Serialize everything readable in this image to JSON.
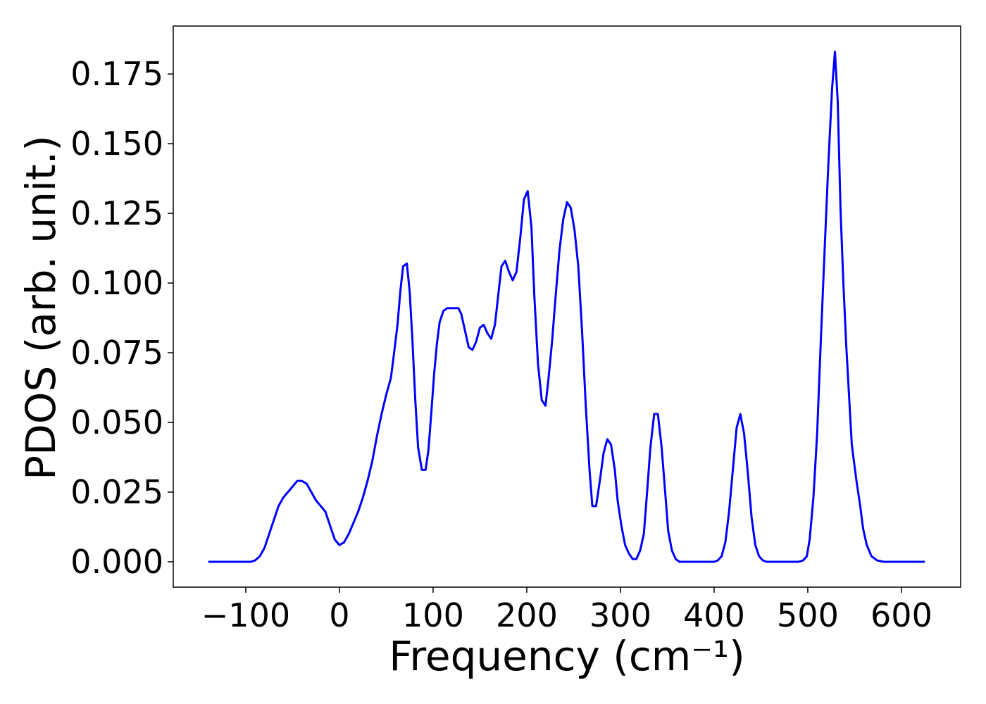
{
  "chart_data": {
    "type": "line",
    "xlabel": "Frequency (cm⁻¹)",
    "ylabel": "PDOS (arb. unit.)",
    "color": "#0000ff",
    "xlim": [
      -177.4,
      663.2
    ],
    "ylim": [
      -0.00909,
      0.1922
    ],
    "xticks": [
      {
        "value": -100,
        "label": "−100"
      },
      0,
      100,
      200,
      300,
      400,
      500,
      600
    ],
    "yticks": [
      {
        "value": 0,
        "label": "0.000"
      },
      {
        "value": 0.025,
        "label": "0.025"
      },
      {
        "value": 0.05,
        "label": "0.050"
      },
      {
        "value": 0.075,
        "label": "0.075"
      },
      {
        "value": 0.1,
        "label": "0.100"
      },
      {
        "value": 0.125,
        "label": "0.125"
      },
      {
        "value": 0.15,
        "label": "0.150"
      },
      {
        "value": 0.175,
        "label": "0.175"
      }
    ],
    "x": [
      -140,
      -95,
      -90,
      -85,
      -80,
      -75,
      -70,
      -65,
      -60,
      -55,
      -50,
      -45,
      -40,
      -35,
      -30,
      -25,
      -20,
      -15,
      -10,
      -5,
      0,
      5,
      10,
      15,
      20,
      25,
      30,
      35,
      40,
      45,
      50,
      55,
      58,
      62,
      65,
      68,
      72,
      75,
      78,
      81,
      84,
      88,
      92,
      95,
      98,
      101,
      104,
      107,
      111,
      115,
      120,
      127,
      130,
      134,
      138,
      142,
      146,
      150,
      154,
      158,
      162,
      166,
      170,
      173,
      177,
      181,
      185,
      189,
      193,
      197,
      201,
      205,
      208,
      212,
      216,
      220,
      223,
      227,
      231,
      235,
      239,
      243,
      247,
      251,
      255,
      259,
      263,
      267,
      270,
      274,
      278,
      282,
      286,
      290,
      294,
      297,
      301,
      305,
      309,
      313,
      317,
      321,
      325,
      328,
      332,
      336,
      340,
      344,
      348,
      351,
      355,
      359,
      363,
      400,
      404,
      408,
      412,
      416,
      420,
      424,
      428,
      432,
      436,
      440,
      444,
      448,
      452,
      456,
      490,
      495,
      499,
      502,
      506,
      510,
      514,
      518,
      522,
      526,
      529,
      532,
      535,
      538,
      541,
      544,
      547,
      552,
      556,
      559,
      563,
      568,
      574,
      581,
      625
    ],
    "values": [
      0,
      0,
      0.0005,
      0.002,
      0.005,
      0.01,
      0.015,
      0.02,
      0.023,
      0.025,
      0.027,
      0.029,
      0.029,
      0.028,
      0.025,
      0.022,
      0.02,
      0.018,
      0.013,
      0.008,
      0.006,
      0.007,
      0.01,
      0.014,
      0.018,
      0.023,
      0.029,
      0.036,
      0.045,
      0.053,
      0.06,
      0.066,
      0.074,
      0.085,
      0.097,
      0.106,
      0.107,
      0.097,
      0.079,
      0.058,
      0.041,
      0.033,
      0.033,
      0.04,
      0.053,
      0.067,
      0.078,
      0.086,
      0.09,
      0.091,
      0.091,
      0.091,
      0.089,
      0.083,
      0.077,
      0.076,
      0.079,
      0.084,
      0.085,
      0.082,
      0.08,
      0.085,
      0.097,
      0.106,
      0.108,
      0.104,
      0.101,
      0.104,
      0.116,
      0.13,
      0.133,
      0.12,
      0.096,
      0.071,
      0.058,
      0.056,
      0.065,
      0.079,
      0.096,
      0.112,
      0.123,
      0.129,
      0.127,
      0.119,
      0.106,
      0.083,
      0.056,
      0.033,
      0.02,
      0.02,
      0.029,
      0.039,
      0.044,
      0.042,
      0.033,
      0.022,
      0.013,
      0.006,
      0.003,
      0.001,
      0.001,
      0.004,
      0.01,
      0.023,
      0.041,
      0.053,
      0.053,
      0.041,
      0.024,
      0.011,
      0.004,
      0.001,
      0,
      0,
      0.0005,
      0.002,
      0.007,
      0.018,
      0.033,
      0.048,
      0.053,
      0.046,
      0.032,
      0.016,
      0.006,
      0.002,
      0.0005,
      0,
      0,
      0.0005,
      0.002,
      0.008,
      0.023,
      0.046,
      0.08,
      0.112,
      0.143,
      0.17,
      0.183,
      0.165,
      0.126,
      0.1,
      0.078,
      0.06,
      0.042,
      0.029,
      0.02,
      0.012,
      0.006,
      0.002,
      0.0005,
      0,
      0
    ]
  }
}
